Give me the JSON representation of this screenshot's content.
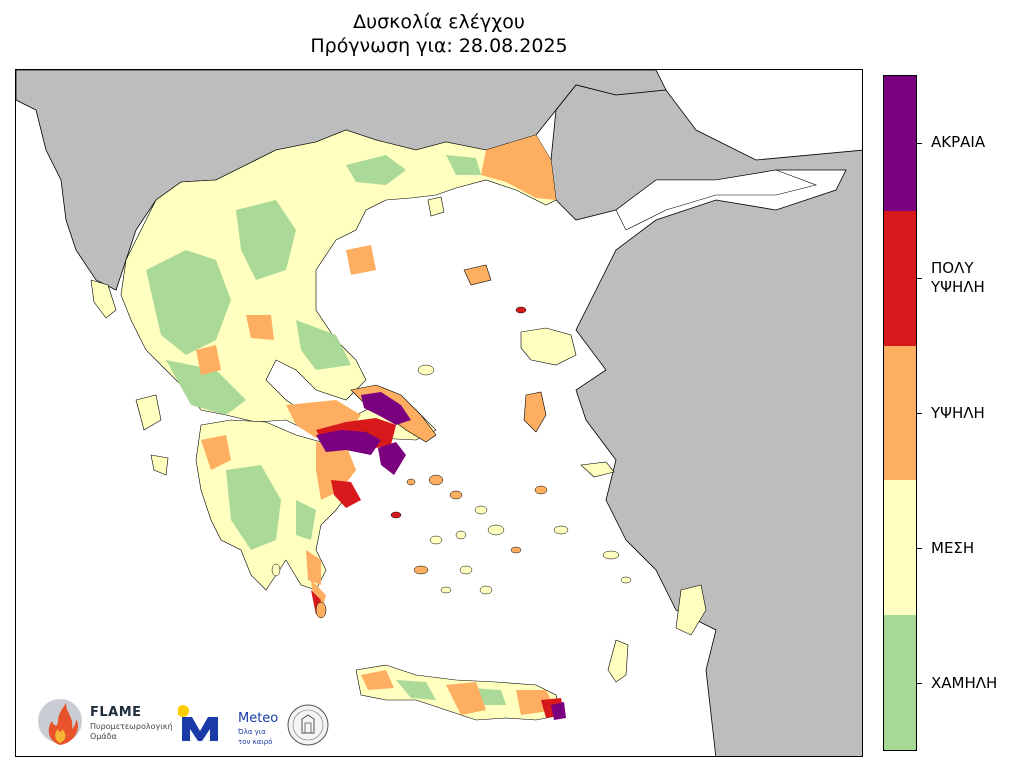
{
  "title": {
    "line1": "Δυσκολία ελέγχου",
    "line2": "Πρόγνωση για: 28.08.2025"
  },
  "legend": {
    "classes": [
      {
        "label": "ΑΚΡΑΙΑ",
        "color": "#7b0080"
      },
      {
        "label": "ΠΟΛΥ\nΥΨΗΛΗ",
        "color": "#d7191c"
      },
      {
        "label": "ΥΨΗΛΗ",
        "color": "#fdae61"
      },
      {
        "label": "ΜΕΣΗ",
        "color": "#ffffc0"
      },
      {
        "label": "ΧΑΜΗΛΗ",
        "color": "#a6d896"
      }
    ]
  },
  "colors": {
    "sea": "#ffffff",
    "neighbor_land": "#bdbdbd",
    "border": "#000000"
  },
  "logos": {
    "flame": {
      "name": "FLAME",
      "subtitle": "Πυρομετεωρολογική Ομάδα"
    },
    "meteo": {
      "name": "Meteo",
      "subtitle1": "Όλα για",
      "subtitle2": "τον καιρό"
    }
  }
}
